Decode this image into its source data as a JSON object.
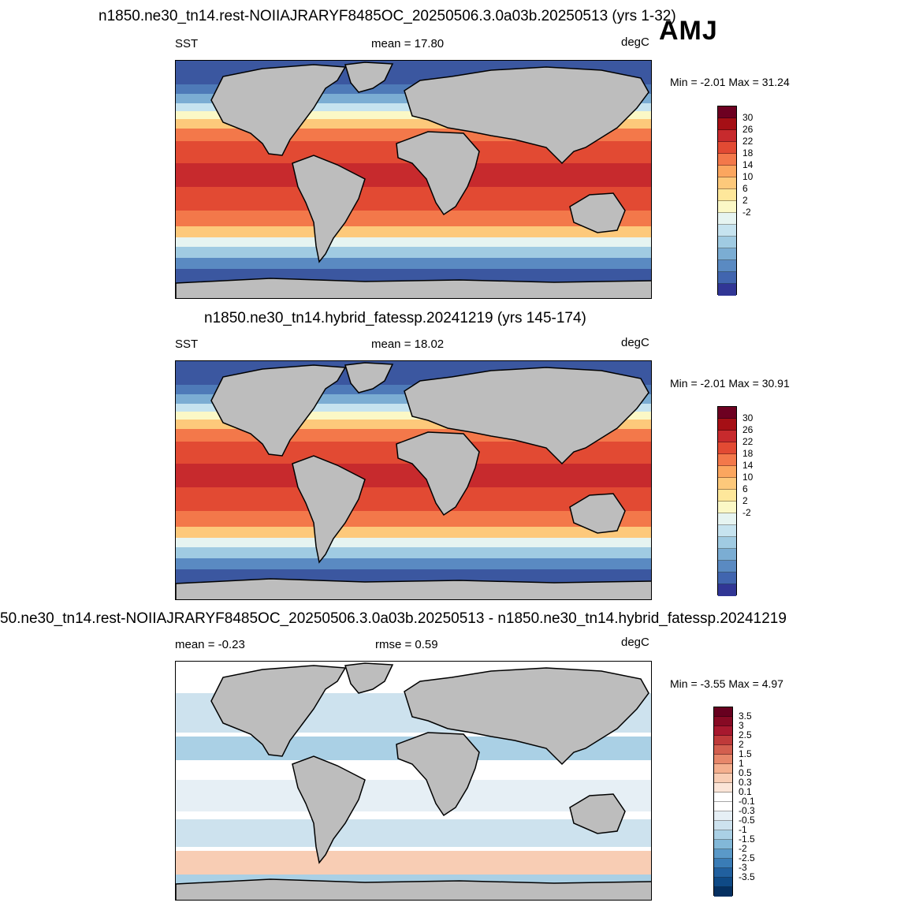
{
  "season": "AMJ",
  "panels": [
    {
      "title": "n1850.ne30_tn14.rest-NOIIAJRARYF8485OC_20250506.3.0a03b.20250513 (yrs 1-32)",
      "left": "SST",
      "center": "mean =  17.80",
      "right": "degC",
      "minmax": "Min =  -2.01 Max =  31.24",
      "colorbar": {
        "colors": [
          "#313695",
          "#4165af",
          "#5a8ac2",
          "#7badd3",
          "#a0cbe2",
          "#c6e3ef",
          "#e6f4f1",
          "#fbf8c6",
          "#fee79b",
          "#fdc97b",
          "#fba65f",
          "#f3784a",
          "#e24a33",
          "#c72a2d",
          "#a50f15",
          "#6d0021"
        ],
        "ticks": [
          "30",
          "26",
          "22",
          "18",
          "14",
          "10",
          "6",
          "2",
          "-2"
        ]
      }
    },
    {
      "title": "n1850.ne30_tn14.hybrid_fatessp.20241219 (yrs 145-174)",
      "left": "SST",
      "center": "mean =  18.02",
      "right": "degC",
      "minmax": "Min =  -2.01 Max =  30.91",
      "colorbar": {
        "colors": [
          "#313695",
          "#4165af",
          "#5a8ac2",
          "#7badd3",
          "#a0cbe2",
          "#c6e3ef",
          "#e6f4f1",
          "#fbf8c6",
          "#fee79b",
          "#fdc97b",
          "#fba65f",
          "#f3784a",
          "#e24a33",
          "#c72a2d",
          "#a50f15",
          "#6d0021"
        ],
        "ticks": [
          "30",
          "26",
          "22",
          "18",
          "14",
          "10",
          "6",
          "2",
          "-2"
        ]
      }
    },
    {
      "title": "50.ne30_tn14.rest-NOIIAJRARYF8485OC_20250506.3.0a03b.20250513 - n1850.ne30_tn14.hybrid_fatessp.20241219",
      "left": "mean =  -0.23",
      "center": "rmse =   0.59",
      "right": "degC",
      "minmax": "Min =  -3.55 Max =   4.97",
      "colorbar": {
        "colors": [
          "#053061",
          "#0f4a86",
          "#21609f",
          "#3a7cb6",
          "#5a99c8",
          "#82b8d8",
          "#aad0e5",
          "#cde2ee",
          "#e6eff5",
          "#ffffff",
          "#ffffff",
          "#fbe5d8",
          "#f8cdb4",
          "#f4af8e",
          "#e7876a",
          "#d35f4f",
          "#bf3a3a",
          "#a7182e",
          "#870a24",
          "#67001f"
        ],
        "ticks": [
          "3.5",
          "3",
          "2.5",
          "2",
          "1.5",
          "1",
          "0.5",
          "0.3",
          "0.1",
          "-0.1",
          "-0.3",
          "-0.5",
          "-1",
          "-1.5",
          "-2",
          "-2.5",
          "-3",
          "-3.5"
        ]
      }
    }
  ],
  "palette": {
    "land": "#bdbdbd",
    "coast": "#000000"
  }
}
